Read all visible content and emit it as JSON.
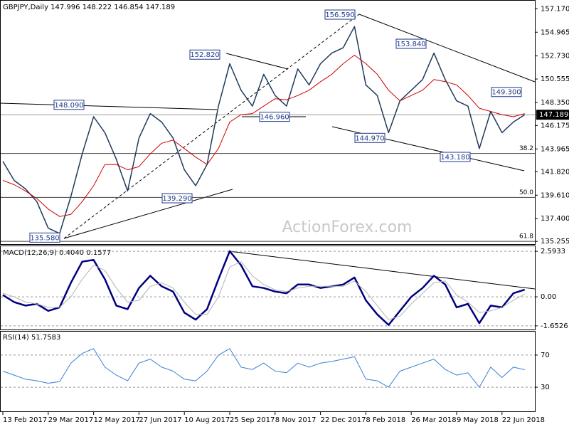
{
  "chart_data": [
    {
      "type": "line",
      "title": "GBPJPY,Daily  147.996 148.222 146.854 147.189",
      "watermark": "ActionForex.com",
      "categories": [
        "13 Feb 2017",
        null,
        null,
        null,
        "29 Mar 2017",
        null,
        null,
        null,
        "12 May 2017",
        null,
        null,
        null,
        "27 Jun 2017",
        null,
        null,
        null,
        "10 Aug 2017",
        null,
        null,
        null,
        "25 Sep 2017",
        null,
        null,
        null,
        "8 Nov 2017",
        null,
        null,
        null,
        "22 Dec 2017",
        null,
        null,
        null,
        "8 Feb 2018",
        null,
        null,
        null,
        "26 Mar 2018",
        null,
        null,
        null,
        "9 May 2018",
        null,
        null,
        null,
        "22 Jun 2018",
        null,
        null
      ],
      "series": [
        {
          "name": "GBPJPY",
          "color": "#1f3a5a",
          "values": [
            142.8,
            141.0,
            140.2,
            139.0,
            136.5,
            136.0,
            139.5,
            143.5,
            147.0,
            145.5,
            143.0,
            140.0,
            145.0,
            147.3,
            146.5,
            145.0,
            142.0,
            140.5,
            142.5,
            148.0,
            152.0,
            149.5,
            148.0,
            151.0,
            149.0,
            148.0,
            151.5,
            150.0,
            152.0,
            153.0,
            153.5,
            155.5,
            150.0,
            149.0,
            145.5,
            148.5,
            149.5,
            150.5,
            153.0,
            150.5,
            148.5,
            148.0,
            144.0,
            147.5,
            145.5,
            146.5,
            147.189
          ]
        },
        {
          "name": "MA",
          "color": "#d00000",
          "values": [
            141.0,
            140.6,
            140.0,
            139.3,
            138.3,
            137.6,
            137.8,
            139.0,
            140.5,
            142.5,
            142.5,
            142.0,
            142.3,
            143.5,
            144.5,
            144.8,
            144.0,
            143.2,
            142.5,
            144.0,
            146.5,
            147.2,
            147.3,
            148.0,
            148.7,
            148.6,
            149.0,
            149.5,
            150.3,
            151.0,
            152.0,
            152.8,
            152.0,
            151.0,
            149.5,
            148.5,
            149.0,
            149.5,
            150.5,
            150.3,
            150.0,
            149.0,
            147.8,
            147.5,
            147.2,
            147.0,
            147.3
          ]
        }
      ],
      "ylim": [
        135.0,
        158.0
      ],
      "yticks": [
        {
          "value": 157.17,
          "label": "157.170"
        },
        154.965,
        {
          "value": 152.73,
          "label": "152.730"
        },
        150.555,
        {
          "value": 148.35,
          "label": "148.350"
        },
        146.175,
        143.965,
        {
          "value": 141.82,
          "label": "141.820"
        },
        {
          "value": 139.61,
          "label": "139.610"
        },
        {
          "value": 137.4,
          "label": "137.400"
        },
        135.255
      ],
      "last": 147.189,
      "annotations": [
        {
          "value": 156.59,
          "label": "156.590"
        },
        {
          "value": 153.84,
          "label": "153.840"
        },
        {
          "value": 152.82,
          "label": "152.820"
        },
        {
          "value": 149.3,
          "label": "149.300"
        },
        {
          "value": 148.09,
          "label": "148.090"
        },
        {
          "value": 146.96,
          "label": "146.960"
        },
        {
          "value": 144.97,
          "label": "144.970"
        },
        {
          "value": 143.18,
          "label": "143.180"
        },
        {
          "value": 139.29,
          "label": "139.290"
        },
        {
          "value": 135.58,
          "label": "135.580"
        }
      ],
      "fib": [
        {
          "value": 143.54,
          "label": "38.2"
        },
        {
          "value": 139.4,
          "label": "50.0"
        },
        {
          "value": 135.26,
          "label": "61.8"
        }
      ]
    },
    {
      "type": "line",
      "title": "MACD(12,26,9) 0.4040 0.1577",
      "series": [
        {
          "name": "MACD",
          "color": "#000080",
          "values": [
            0.1,
            -0.3,
            -0.5,
            -0.4,
            -0.8,
            -0.6,
            0.8,
            2.0,
            2.1,
            1.0,
            -0.5,
            -0.7,
            0.5,
            1.2,
            0.6,
            0.3,
            -0.9,
            -1.3,
            -0.7,
            1.0,
            2.6,
            1.8,
            0.6,
            0.5,
            0.3,
            0.2,
            0.7,
            0.7,
            0.5,
            0.6,
            0.7,
            1.1,
            -0.2,
            -1.0,
            -1.6,
            -0.8,
            0.0,
            0.5,
            1.2,
            0.7,
            -0.6,
            -0.4,
            -1.5,
            -0.5,
            -0.6,
            0.2,
            0.404
          ]
        },
        {
          "name": "Signal",
          "color": "#b4b4b4",
          "values": [
            0.2,
            0.0,
            -0.3,
            -0.4,
            -0.6,
            -0.6,
            0.0,
            1.0,
            1.8,
            1.5,
            0.5,
            -0.3,
            -0.2,
            0.6,
            0.8,
            0.5,
            -0.3,
            -1.0,
            -1.0,
            0.0,
            1.7,
            2.0,
            1.2,
            0.7,
            0.4,
            0.3,
            0.5,
            0.6,
            0.6,
            0.6,
            0.6,
            0.9,
            0.3,
            -0.5,
            -1.3,
            -1.1,
            -0.4,
            0.2,
            0.8,
            0.9,
            0.1,
            -0.3,
            -0.9,
            -0.8,
            -0.6,
            -0.2,
            0.1577
          ]
        }
      ],
      "ylim": [
        -1.86,
        2.92
      ],
      "yticks": [
        2.5933,
        {
          "value": 0,
          "label": "0.00"
        },
        -1.6526
      ]
    },
    {
      "type": "line",
      "title": "RSI(14) 51.7583",
      "series": [
        {
          "name": "RSI",
          "color": "#3a7fd5",
          "values": [
            50,
            45,
            40,
            38,
            35,
            37,
            60,
            72,
            78,
            55,
            45,
            38,
            60,
            65,
            55,
            50,
            40,
            38,
            50,
            70,
            78,
            55,
            52,
            60,
            50,
            48,
            60,
            55,
            60,
            62,
            65,
            68,
            40,
            38,
            30,
            50,
            55,
            60,
            65,
            52,
            45,
            48,
            30,
            55,
            42,
            55,
            51.7583
          ]
        }
      ],
      "ylim": [
        0,
        100
      ],
      "yticks": [
        70,
        30
      ],
      "grid": true
    }
  ]
}
